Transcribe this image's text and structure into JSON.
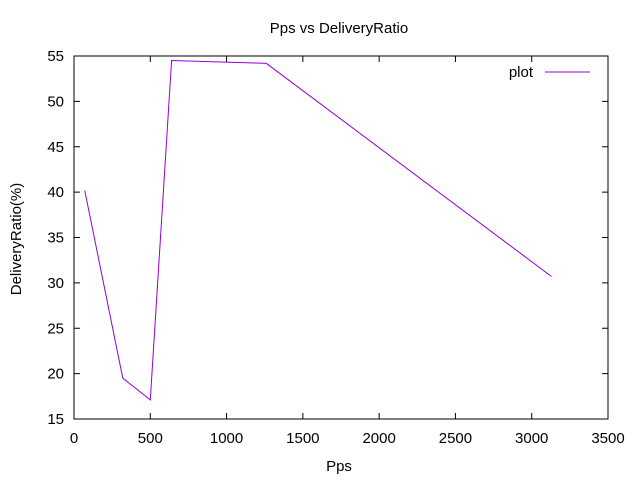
{
  "colors": {
    "background": "#ffffff",
    "axis": "#000000",
    "series": "#9400d3"
  },
  "chart_data": {
    "type": "line",
    "title": "Pps vs DeliveryRatio",
    "xlabel": "Pps",
    "ylabel": "DeliveryRatio(%)",
    "xlim": [
      0,
      3500
    ],
    "ylim": [
      15,
      55
    ],
    "xticks": [
      0,
      500,
      1000,
      1500,
      2000,
      2500,
      3000,
      3500
    ],
    "yticks": [
      15,
      20,
      25,
      30,
      35,
      40,
      45,
      50,
      55
    ],
    "grid": false,
    "legend_position": "top-right",
    "series": [
      {
        "name": "plot",
        "x": [
          70,
          320,
          500,
          640,
          1260,
          3130
        ],
        "y": [
          40.2,
          19.5,
          17.1,
          54.5,
          54.2,
          30.7
        ]
      }
    ]
  }
}
